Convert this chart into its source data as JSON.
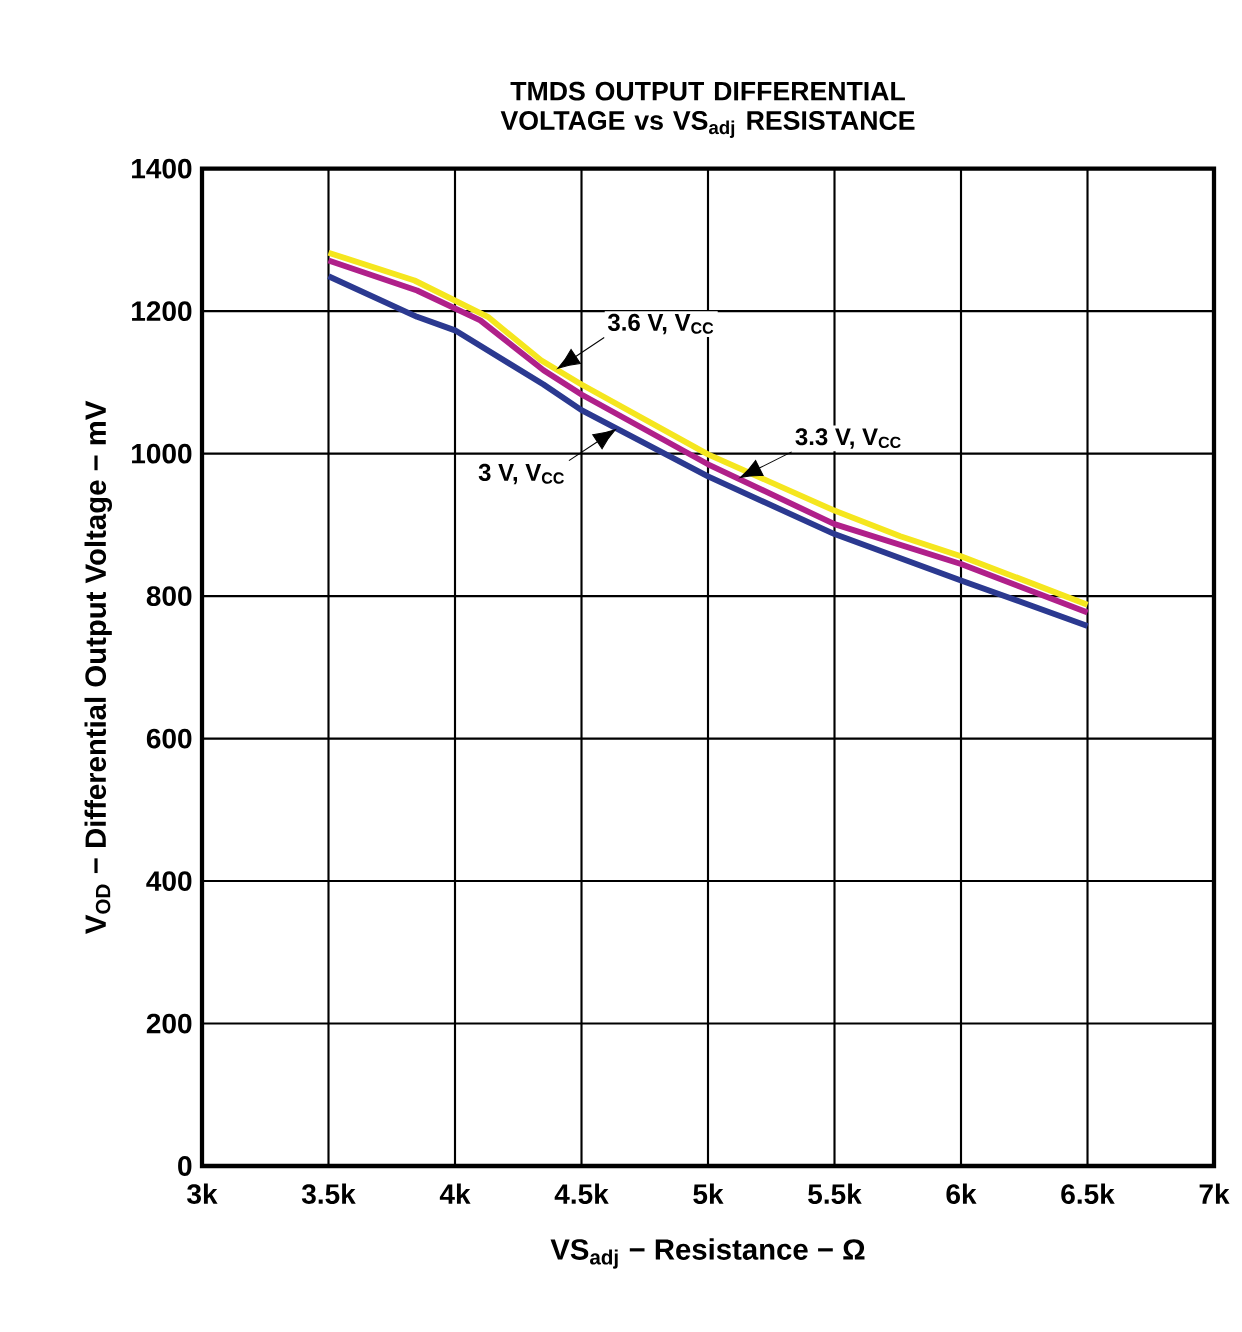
{
  "chart_data": {
    "type": "line",
    "title": "TMDS OUTPUT DIFFERENTIAL VOLTAGE vs VS$_{adj}$ RESISTANCE",
    "xlabel": "VS$_{adj}$ − Resistance − Ω",
    "ylabel": "V$_{OD}$ − Differential Output Voltage − mV",
    "xlim": [
      3000,
      7000
    ],
    "ylim": [
      0,
      1400
    ],
    "xticks": [
      {
        "value": 3000,
        "label": "3k"
      },
      {
        "value": 3500,
        "label": "3.5k"
      },
      {
        "value": 4000,
        "label": "4k"
      },
      {
        "value": 4500,
        "label": "4.5k"
      },
      {
        "value": 5000,
        "label": "5k"
      },
      {
        "value": 5500,
        "label": "5.5k"
      },
      {
        "value": 6000,
        "label": "6k"
      },
      {
        "value": 6500,
        "label": "6.5k"
      },
      {
        "value": 7000,
        "label": "7k"
      }
    ],
    "yticks": [
      0,
      200,
      400,
      600,
      800,
      1000,
      1200,
      1400
    ],
    "grid": true,
    "legend": false,
    "marker": "none",
    "line_style": "solid",
    "series": [
      {
        "color": "#f5e61e",
        "x": [
          3500,
          3840,
          4130,
          4340,
          4500,
          5000,
          5500,
          5760,
          6000,
          6500
        ],
        "values": [
          1282,
          1243,
          1192,
          1131,
          1097,
          999,
          920,
          884,
          856,
          788
        ]
      },
      {
        "color": "#b0208a",
        "x": [
          3500,
          3850,
          4100,
          4350,
          4500,
          5000,
          5500,
          6000,
          6500
        ],
        "values": [
          1271,
          1229,
          1187,
          1117,
          1083,
          985,
          901,
          845,
          777
        ]
      },
      {
        "color": "#2b3990",
        "x": [
          3500,
          3850,
          4000,
          4350,
          4500,
          5000,
          5500,
          6000,
          6500
        ],
        "values": [
          1249,
          1192,
          1173,
          1097,
          1061,
          968,
          887,
          822,
          758
        ]
      }
    ],
    "annotations": [
      {
        "text": "3.6 V, V$_{CC}$",
        "x": 4400,
        "y": 1118
      },
      {
        "text": "3.3 V, V$_{CC}$",
        "x": 5120,
        "y": 965
      },
      {
        "text": "3 V, V$_{CC}$",
        "x": 4640,
        "y": 1035
      }
    ]
  }
}
